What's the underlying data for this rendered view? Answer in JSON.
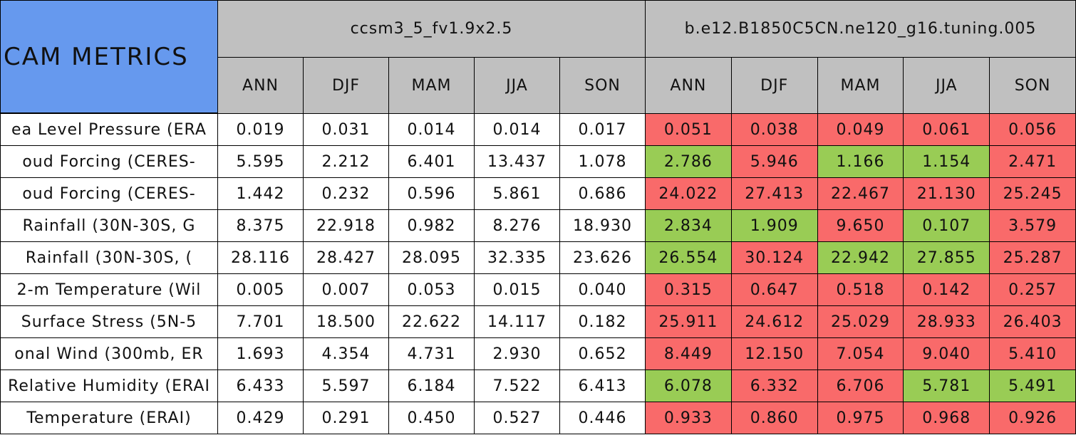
{
  "header": {
    "title": "CAM METRICS",
    "groups": [
      {
        "name": "ccsm3_5_fv1.9x2.5",
        "seasons": [
          "ANN",
          "DJF",
          "MAM",
          "JJA",
          "SON"
        ]
      },
      {
        "name": "b.e12.B1850C5CN.ne120_g16.tuning.005",
        "seasons": [
          "ANN",
          "DJF",
          "MAM",
          "JJA",
          "SON"
        ]
      }
    ]
  },
  "table": {
    "rows": [
      {
        "label": "ea Level Pressure (ERA",
        "values": [
          "0.019",
          "0.031",
          "0.014",
          "0.014",
          "0.017",
          "0.051",
          "0.038",
          "0.049",
          "0.061",
          "0.056"
        ],
        "colors": [
          "#ffffff",
          "#ffffff",
          "#ffffff",
          "#ffffff",
          "#ffffff",
          "#f96a6a",
          "#f96a6a",
          "#f96a6a",
          "#f96a6a",
          "#f96a6a"
        ]
      },
      {
        "label": "oud Forcing (CERES-",
        "values": [
          "5.595",
          "2.212",
          "6.401",
          "13.437",
          "1.078",
          "2.786",
          "5.946",
          "1.166",
          "1.154",
          "2.471"
        ],
        "colors": [
          "#ffffff",
          "#ffffff",
          "#ffffff",
          "#ffffff",
          "#ffffff",
          "#99cc55",
          "#f96a6a",
          "#99cc55",
          "#99cc55",
          "#f96a6a"
        ]
      },
      {
        "label": "oud Forcing (CERES-",
        "values": [
          "1.442",
          "0.232",
          "0.596",
          "5.861",
          "0.686",
          "24.022",
          "27.413",
          "22.467",
          "21.130",
          "25.245"
        ],
        "colors": [
          "#ffffff",
          "#ffffff",
          "#ffffff",
          "#ffffff",
          "#ffffff",
          "#f96a6a",
          "#f96a6a",
          "#f96a6a",
          "#f96a6a",
          "#f96a6a"
        ]
      },
      {
        "label": "Rainfall (30N-30S, G",
        "values": [
          "8.375",
          "22.918",
          "0.982",
          "8.276",
          "18.930",
          "2.834",
          "1.909",
          "9.650",
          "0.107",
          "3.579"
        ],
        "colors": [
          "#ffffff",
          "#ffffff",
          "#ffffff",
          "#ffffff",
          "#ffffff",
          "#99cc55",
          "#99cc55",
          "#f96a6a",
          "#99cc55",
          "#f96a6a"
        ]
      },
      {
        "label": "Rainfall (30N-30S, (",
        "values": [
          "28.116",
          "28.427",
          "28.095",
          "32.335",
          "23.626",
          "26.554",
          "30.124",
          "22.942",
          "27.855",
          "25.287"
        ],
        "colors": [
          "#ffffff",
          "#ffffff",
          "#ffffff",
          "#ffffff",
          "#ffffff",
          "#99cc55",
          "#f96a6a",
          "#99cc55",
          "#99cc55",
          "#f96a6a"
        ]
      },
      {
        "label": "2-m Temperature (Wil",
        "values": [
          "0.005",
          "0.007",
          "0.053",
          "0.015",
          "0.040",
          "0.315",
          "0.647",
          "0.518",
          "0.142",
          "0.257"
        ],
        "colors": [
          "#ffffff",
          "#ffffff",
          "#ffffff",
          "#ffffff",
          "#ffffff",
          "#f96a6a",
          "#f96a6a",
          "#f96a6a",
          "#f96a6a",
          "#f96a6a"
        ]
      },
      {
        "label": "Surface Stress (5N-5",
        "values": [
          "7.701",
          "18.500",
          "22.622",
          "14.117",
          "0.182",
          "25.911",
          "24.612",
          "25.029",
          "28.933",
          "26.403"
        ],
        "colors": [
          "#ffffff",
          "#ffffff",
          "#ffffff",
          "#ffffff",
          "#ffffff",
          "#f96a6a",
          "#f96a6a",
          "#f96a6a",
          "#f96a6a",
          "#f96a6a"
        ]
      },
      {
        "label": "onal Wind (300mb, ER",
        "values": [
          "1.693",
          "4.354",
          "4.731",
          "2.930",
          "0.652",
          "8.449",
          "12.150",
          "7.054",
          "9.040",
          "5.410"
        ],
        "colors": [
          "#ffffff",
          "#ffffff",
          "#ffffff",
          "#ffffff",
          "#ffffff",
          "#f96a6a",
          "#f96a6a",
          "#f96a6a",
          "#f96a6a",
          "#f96a6a"
        ]
      },
      {
        "label": "Relative Humidity (ERAI",
        "values": [
          "6.433",
          "5.597",
          "6.184",
          "7.522",
          "6.413",
          "6.078",
          "6.332",
          "6.706",
          "5.781",
          "5.491"
        ],
        "colors": [
          "#ffffff",
          "#ffffff",
          "#ffffff",
          "#ffffff",
          "#ffffff",
          "#99cc55",
          "#f96a6a",
          "#f96a6a",
          "#99cc55",
          "#99cc55"
        ]
      },
      {
        "label": "Temperature (ERAI)",
        "values": [
          "0.429",
          "0.291",
          "0.450",
          "0.527",
          "0.446",
          "0.933",
          "0.860",
          "0.975",
          "0.968",
          "0.926"
        ],
        "colors": [
          "#ffffff",
          "#ffffff",
          "#ffffff",
          "#ffffff",
          "#ffffff",
          "#f96a6a",
          "#f96a6a",
          "#f96a6a",
          "#f96a6a",
          "#f96a6a"
        ]
      }
    ]
  }
}
